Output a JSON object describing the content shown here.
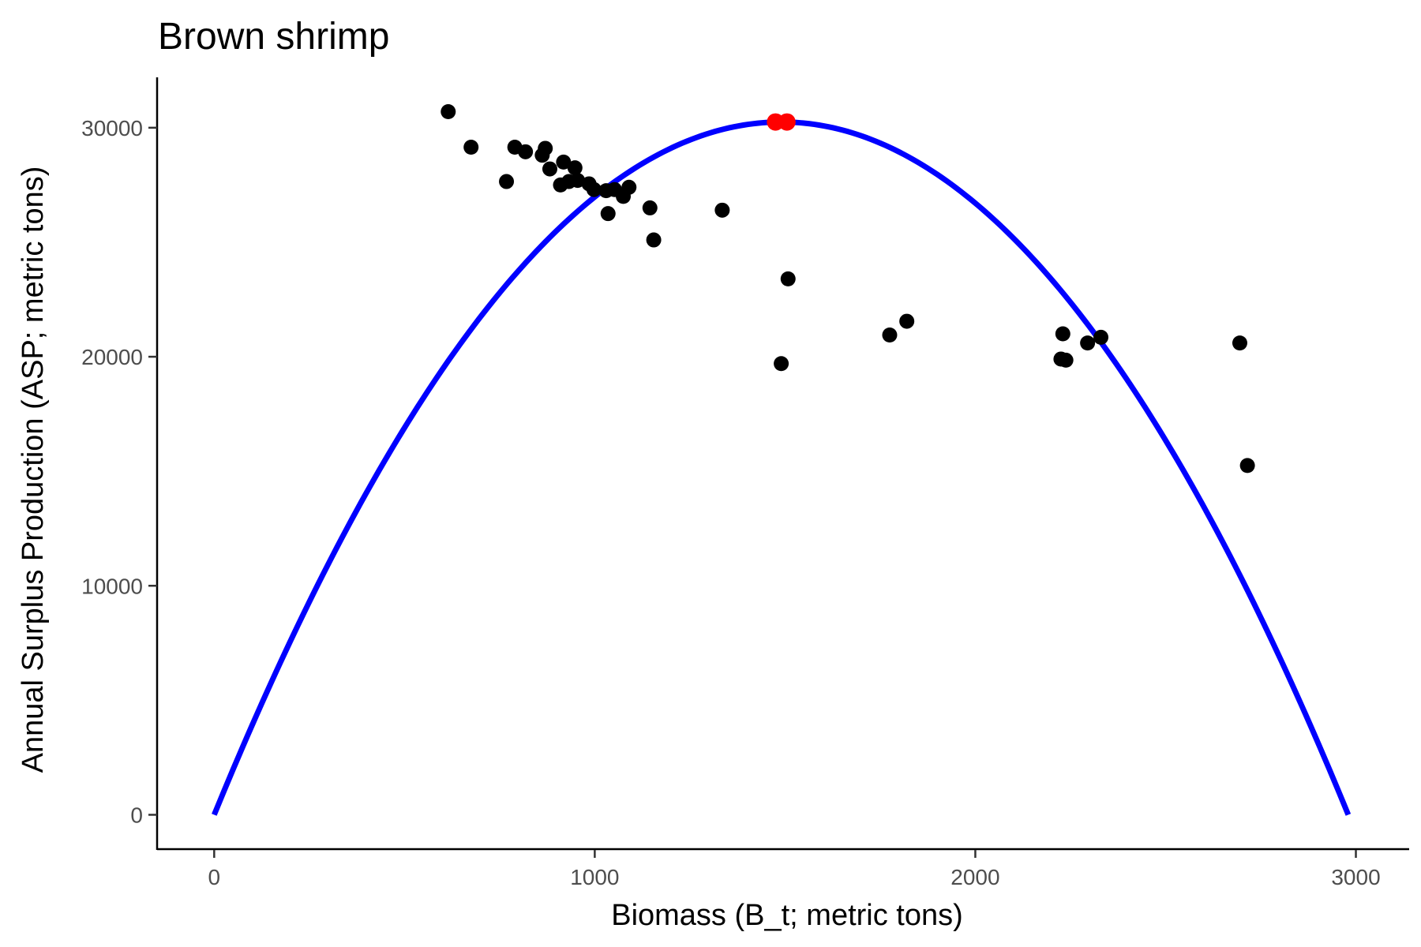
{
  "chart_data": {
    "type": "scatter",
    "title": "Brown shrimp",
    "xlabel": "Biomass (B_t; metric tons)",
    "ylabel": "Annual Surplus Production (ASP; metric tons)",
    "xlim": [
      -150,
      3140
    ],
    "ylim": [
      -1500,
      32200
    ],
    "x_ticks": [
      0,
      1000,
      2000,
      3000
    ],
    "x_tick_labels": [
      "0",
      "1000",
      "2000",
      "3000"
    ],
    "y_ticks": [
      0,
      10000,
      20000,
      30000
    ],
    "y_tick_labels": [
      "0",
      "10000",
      "20000",
      "30000"
    ],
    "grid": false,
    "legend": "none",
    "colors": {
      "points": "#000000",
      "curve": "#0000ff",
      "highlight": "#ff0000",
      "axis": "#000000"
    },
    "curve": {
      "type": "parabola",
      "x_start": 0,
      "x_end": 2980,
      "peak_x": 1490,
      "peak_y": 30250
    },
    "highlight_points": [
      {
        "x": 1475,
        "y": 30250
      },
      {
        "x": 1505,
        "y": 30250
      }
    ],
    "points": [
      {
        "x": 615,
        "y": 30700
      },
      {
        "x": 675,
        "y": 29150
      },
      {
        "x": 768,
        "y": 27650
      },
      {
        "x": 790,
        "y": 29150
      },
      {
        "x": 818,
        "y": 28950
      },
      {
        "x": 862,
        "y": 28800
      },
      {
        "x": 870,
        "y": 29100
      },
      {
        "x": 882,
        "y": 28200
      },
      {
        "x": 910,
        "y": 27500
      },
      {
        "x": 918,
        "y": 28500
      },
      {
        "x": 932,
        "y": 27650
      },
      {
        "x": 948,
        "y": 28250
      },
      {
        "x": 955,
        "y": 27700
      },
      {
        "x": 985,
        "y": 27550
      },
      {
        "x": 998,
        "y": 27300
      },
      {
        "x": 1030,
        "y": 27250
      },
      {
        "x": 1035,
        "y": 26250
      },
      {
        "x": 1052,
        "y": 27300
      },
      {
        "x": 1075,
        "y": 27000
      },
      {
        "x": 1090,
        "y": 27400
      },
      {
        "x": 1145,
        "y": 26500
      },
      {
        "x": 1155,
        "y": 25100
      },
      {
        "x": 1335,
        "y": 26400
      },
      {
        "x": 1490,
        "y": 19700
      },
      {
        "x": 1508,
        "y": 23400
      },
      {
        "x": 1775,
        "y": 20950
      },
      {
        "x": 1820,
        "y": 21550
      },
      {
        "x": 2225,
        "y": 19900
      },
      {
        "x": 2230,
        "y": 21000
      },
      {
        "x": 2238,
        "y": 19850
      },
      {
        "x": 2295,
        "y": 20600
      },
      {
        "x": 2330,
        "y": 20850
      },
      {
        "x": 2695,
        "y": 20600
      },
      {
        "x": 2715,
        "y": 15250
      }
    ]
  }
}
